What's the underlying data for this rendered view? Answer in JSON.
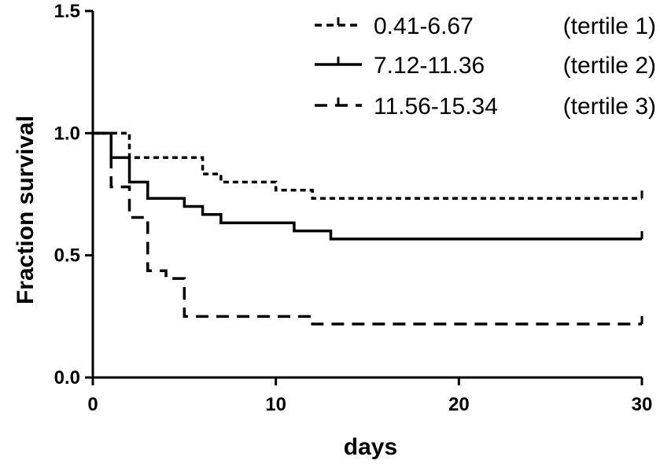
{
  "chart_data": {
    "type": "line",
    "subtype": "kaplan-meier-step",
    "title": "",
    "xlabel": "days",
    "ylabel": "Fraction survival",
    "xlim": [
      0,
      30
    ],
    "ylim": [
      0,
      1.5
    ],
    "x_ticks": [
      "0",
      "10",
      "20",
      "30"
    ],
    "y_ticks": [
      "0.0",
      "0.5",
      "1.0",
      "1.5"
    ],
    "grid": false,
    "legend_position": "top-right",
    "series": [
      {
        "name": "0.41-6.67",
        "note": "(tertile 1)",
        "dash": "short-dash",
        "points": [
          [
            0,
            1.0
          ],
          [
            2,
            1.0
          ],
          [
            2,
            0.9
          ],
          [
            6,
            0.9
          ],
          [
            6,
            0.833
          ],
          [
            7,
            0.833
          ],
          [
            7,
            0.8
          ],
          [
            10,
            0.8
          ],
          [
            10,
            0.767
          ],
          [
            12,
            0.767
          ],
          [
            12,
            0.733
          ],
          [
            30,
            0.733
          ]
        ]
      },
      {
        "name": "7.12-11.36",
        "note": "(tertile 2)",
        "dash": "solid",
        "points": [
          [
            0,
            1.0
          ],
          [
            1,
            1.0
          ],
          [
            1,
            0.9
          ],
          [
            2,
            0.9
          ],
          [
            2,
            0.8
          ],
          [
            3,
            0.8
          ],
          [
            3,
            0.733
          ],
          [
            5,
            0.733
          ],
          [
            5,
            0.7
          ],
          [
            6,
            0.7
          ],
          [
            6,
            0.667
          ],
          [
            7,
            0.667
          ],
          [
            7,
            0.633
          ],
          [
            11,
            0.633
          ],
          [
            11,
            0.6
          ],
          [
            13,
            0.6
          ],
          [
            13,
            0.567
          ],
          [
            30,
            0.567
          ]
        ]
      },
      {
        "name": "11.56-15.34",
        "note": "(tertile 3)",
        "dash": "long-dash",
        "points": [
          [
            0,
            1.0
          ],
          [
            1,
            1.0
          ],
          [
            1,
            0.78
          ],
          [
            2,
            0.78
          ],
          [
            2,
            0.655
          ],
          [
            3,
            0.655
          ],
          [
            3,
            0.437
          ],
          [
            4,
            0.437
          ],
          [
            4,
            0.405
          ],
          [
            5,
            0.405
          ],
          [
            5,
            0.25
          ],
          [
            12,
            0.25
          ],
          [
            12,
            0.219
          ],
          [
            30,
            0.219
          ]
        ]
      }
    ]
  }
}
